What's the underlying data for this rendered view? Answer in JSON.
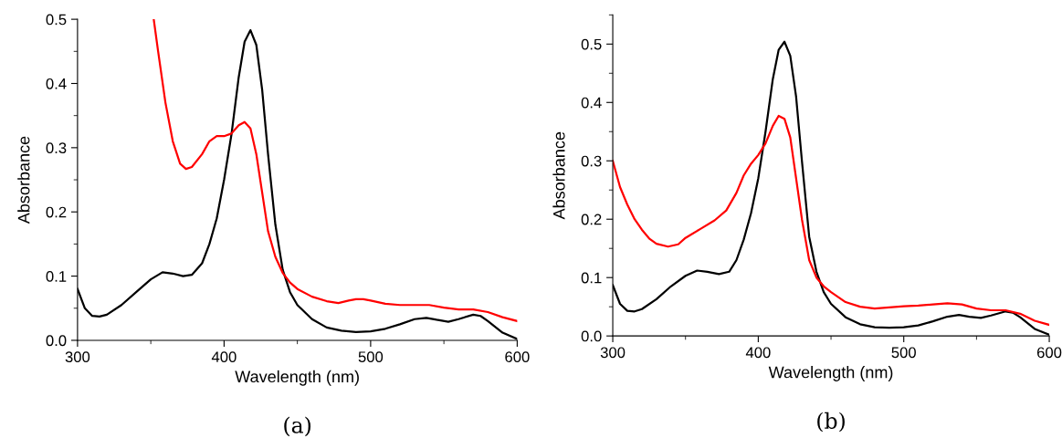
{
  "chart_data": [
    {
      "type": "line",
      "title": "(a)",
      "xlabel": "Wavelength (nm)",
      "ylabel": "Absorbance",
      "xlim": [
        300,
        600
      ],
      "ylim": [
        0,
        0.5
      ],
      "xticks": [
        300,
        400,
        500,
        600
      ],
      "yticks": [
        {
          "value": 0,
          "label": "0.0"
        },
        0.1,
        0.2,
        0.3,
        0.4,
        0.5
      ],
      "grid": false,
      "marker": "none",
      "line_style": "solid",
      "series": [
        {
          "color": "#000000",
          "x": [
            300,
            305,
            310,
            315,
            320,
            330,
            340,
            350,
            358,
            365,
            372,
            378,
            385,
            390,
            395,
            400,
            405,
            410,
            414,
            418,
            422,
            426,
            430,
            435,
            440,
            445,
            450,
            460,
            470,
            480,
            490,
            500,
            510,
            520,
            530,
            538,
            545,
            553,
            560,
            570,
            575,
            580,
            590,
            600
          ],
          "values": [
            0.08,
            0.05,
            0.038,
            0.037,
            0.04,
            0.055,
            0.075,
            0.095,
            0.106,
            0.104,
            0.1,
            0.102,
            0.12,
            0.15,
            0.19,
            0.25,
            0.32,
            0.41,
            0.465,
            0.483,
            0.46,
            0.39,
            0.29,
            0.18,
            0.11,
            0.075,
            0.055,
            0.033,
            0.02,
            0.015,
            0.013,
            0.014,
            0.018,
            0.025,
            0.033,
            0.035,
            0.032,
            0.029,
            0.033,
            0.04,
            0.038,
            0.03,
            0.012,
            0.002
          ]
        },
        {
          "color": "#ff0000",
          "x": [
            352,
            355,
            360,
            365,
            370,
            374,
            378,
            385,
            390,
            395,
            400,
            405,
            410,
            414,
            418,
            422,
            426,
            430,
            435,
            440,
            445,
            450,
            460,
            470,
            478,
            485,
            490,
            495,
            500,
            510,
            520,
            530,
            540,
            550,
            560,
            570,
            580,
            590,
            600
          ],
          "values": [
            0.5,
            0.45,
            0.37,
            0.31,
            0.275,
            0.267,
            0.27,
            0.29,
            0.31,
            0.318,
            0.318,
            0.322,
            0.335,
            0.34,
            0.33,
            0.29,
            0.23,
            0.17,
            0.13,
            0.105,
            0.09,
            0.08,
            0.068,
            0.061,
            0.058,
            0.062,
            0.064,
            0.064,
            0.062,
            0.057,
            0.055,
            0.055,
            0.055,
            0.051,
            0.048,
            0.048,
            0.044,
            0.036,
            0.03
          ]
        }
      ]
    },
    {
      "type": "line",
      "title": "(b)",
      "xlabel": "Wavelength (nm)",
      "ylabel": "Absorbance",
      "xlim": [
        300,
        600
      ],
      "ylim": [
        0,
        0.55
      ],
      "xticks": [
        300,
        400,
        500,
        600
      ],
      "yticks": [
        {
          "value": 0,
          "label": "0.0"
        },
        0.1,
        0.2,
        0.3,
        0.4,
        0.5
      ],
      "grid": false,
      "marker": "none",
      "line_style": "solid",
      "series": [
        {
          "color": "#000000",
          "x": [
            300,
            305,
            310,
            315,
            320,
            330,
            340,
            350,
            358,
            365,
            373,
            380,
            385,
            390,
            395,
            400,
            405,
            410,
            414,
            418,
            422,
            426,
            430,
            435,
            440,
            445,
            450,
            460,
            470,
            480,
            490,
            500,
            510,
            520,
            530,
            538,
            545,
            553,
            560,
            570,
            575,
            580,
            590,
            600
          ],
          "values": [
            0.087,
            0.055,
            0.043,
            0.042,
            0.046,
            0.063,
            0.085,
            0.103,
            0.112,
            0.11,
            0.106,
            0.11,
            0.13,
            0.165,
            0.21,
            0.27,
            0.35,
            0.44,
            0.49,
            0.504,
            0.48,
            0.41,
            0.3,
            0.17,
            0.11,
            0.075,
            0.055,
            0.032,
            0.02,
            0.015,
            0.014,
            0.015,
            0.018,
            0.025,
            0.033,
            0.036,
            0.033,
            0.031,
            0.035,
            0.042,
            0.04,
            0.032,
            0.012,
            0.002
          ]
        },
        {
          "color": "#ff0000",
          "x": [
            300,
            305,
            310,
            315,
            320,
            325,
            330,
            338,
            345,
            350,
            360,
            370,
            378,
            385,
            390,
            395,
            400,
            405,
            410,
            414,
            418,
            422,
            426,
            430,
            435,
            440,
            445,
            450,
            460,
            470,
            480,
            490,
            500,
            510,
            520,
            530,
            540,
            550,
            560,
            570,
            580,
            590,
            600
          ],
          "values": [
            0.3,
            0.255,
            0.225,
            0.2,
            0.182,
            0.167,
            0.158,
            0.153,
            0.157,
            0.168,
            0.183,
            0.198,
            0.215,
            0.245,
            0.275,
            0.295,
            0.31,
            0.33,
            0.36,
            0.377,
            0.372,
            0.34,
            0.27,
            0.2,
            0.13,
            0.1,
            0.085,
            0.075,
            0.058,
            0.05,
            0.047,
            0.049,
            0.051,
            0.052,
            0.054,
            0.056,
            0.054,
            0.047,
            0.044,
            0.044,
            0.038,
            0.026,
            0.019
          ]
        }
      ]
    }
  ]
}
